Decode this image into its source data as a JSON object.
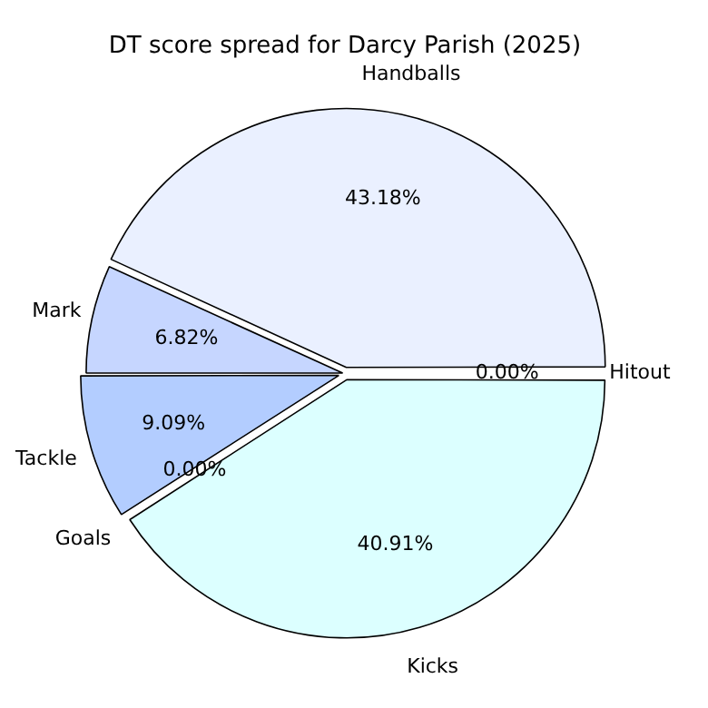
{
  "chart_data": {
    "type": "pie",
    "title": "DT score spread for Darcy Parish (2025)",
    "categories": [
      "Handballs",
      "Mark",
      "Tackle",
      "Goals",
      "Kicks",
      "Hitout"
    ],
    "values": [
      43.18,
      6.82,
      9.09,
      0.0,
      40.91,
      0.0
    ],
    "value_labels": [
      "43.18%",
      "6.82%",
      "9.09%",
      "0.00%",
      "40.91%",
      "0.00%"
    ],
    "colors": [
      "#eaf0ff",
      "#c6d6ff",
      "#b3cdff",
      "#a8c4ff",
      "#dcffff",
      "#e0e8ff"
    ],
    "legend": false
  }
}
